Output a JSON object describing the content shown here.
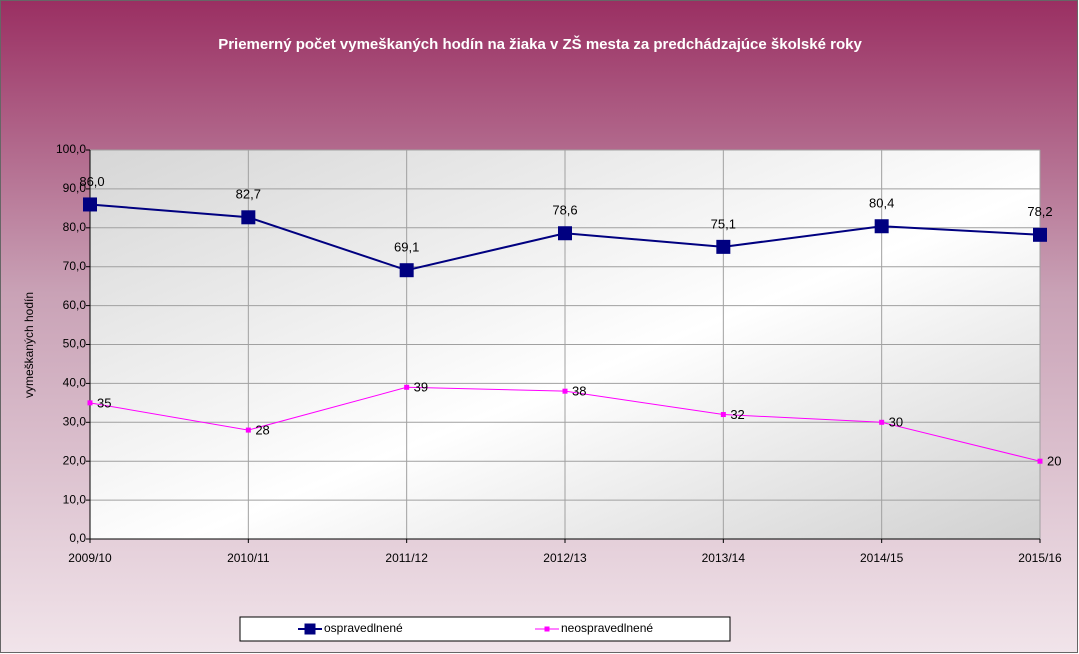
{
  "chart_data": {
    "type": "line",
    "title": "Priemerný počet vymeškaných hodín na žiaka v ZŠ mesta za predchádzajúce školské roky",
    "y_label": "vymeškaných hodín",
    "categories": [
      "2009/10",
      "2010/11",
      "2011/12",
      "2012/13",
      "2013/14",
      "2014/15",
      "2015/16"
    ],
    "series": [
      {
        "name": "ospravedlnené",
        "color": "#000080",
        "marker": "square",
        "marker_size": 14,
        "values": [
          86.0,
          82.7,
          69.1,
          78.6,
          75.1,
          80.4,
          78.2
        ],
        "value_labels": [
          "86,0",
          "82,7",
          "69,1",
          "78,6",
          "75,1",
          "80,4",
          "78,2"
        ]
      },
      {
        "name": "neospravedlnené",
        "color": "#ff00ff",
        "marker": "square",
        "marker_size": 5,
        "values": [
          35,
          28,
          39,
          38,
          32,
          30,
          20
        ]
      }
    ],
    "ylim": [
      0,
      100
    ],
    "yticks": [
      {
        "value": 0,
        "label": "0,0"
      },
      {
        "value": 10,
        "label": "10,0"
      },
      {
        "value": 20,
        "label": "20,0"
      },
      {
        "value": 30,
        "label": "30,0"
      },
      {
        "value": 40,
        "label": "40,0"
      },
      {
        "value": 50,
        "label": "50,0"
      },
      {
        "value": 60,
        "label": "60,0"
      },
      {
        "value": 70,
        "label": "70,0"
      },
      {
        "value": 80,
        "label": "80,0"
      },
      {
        "value": 90,
        "label": "90,0"
      },
      {
        "value": 100,
        "label": "100,0"
      }
    ],
    "grid": true,
    "legend": "bottom"
  }
}
